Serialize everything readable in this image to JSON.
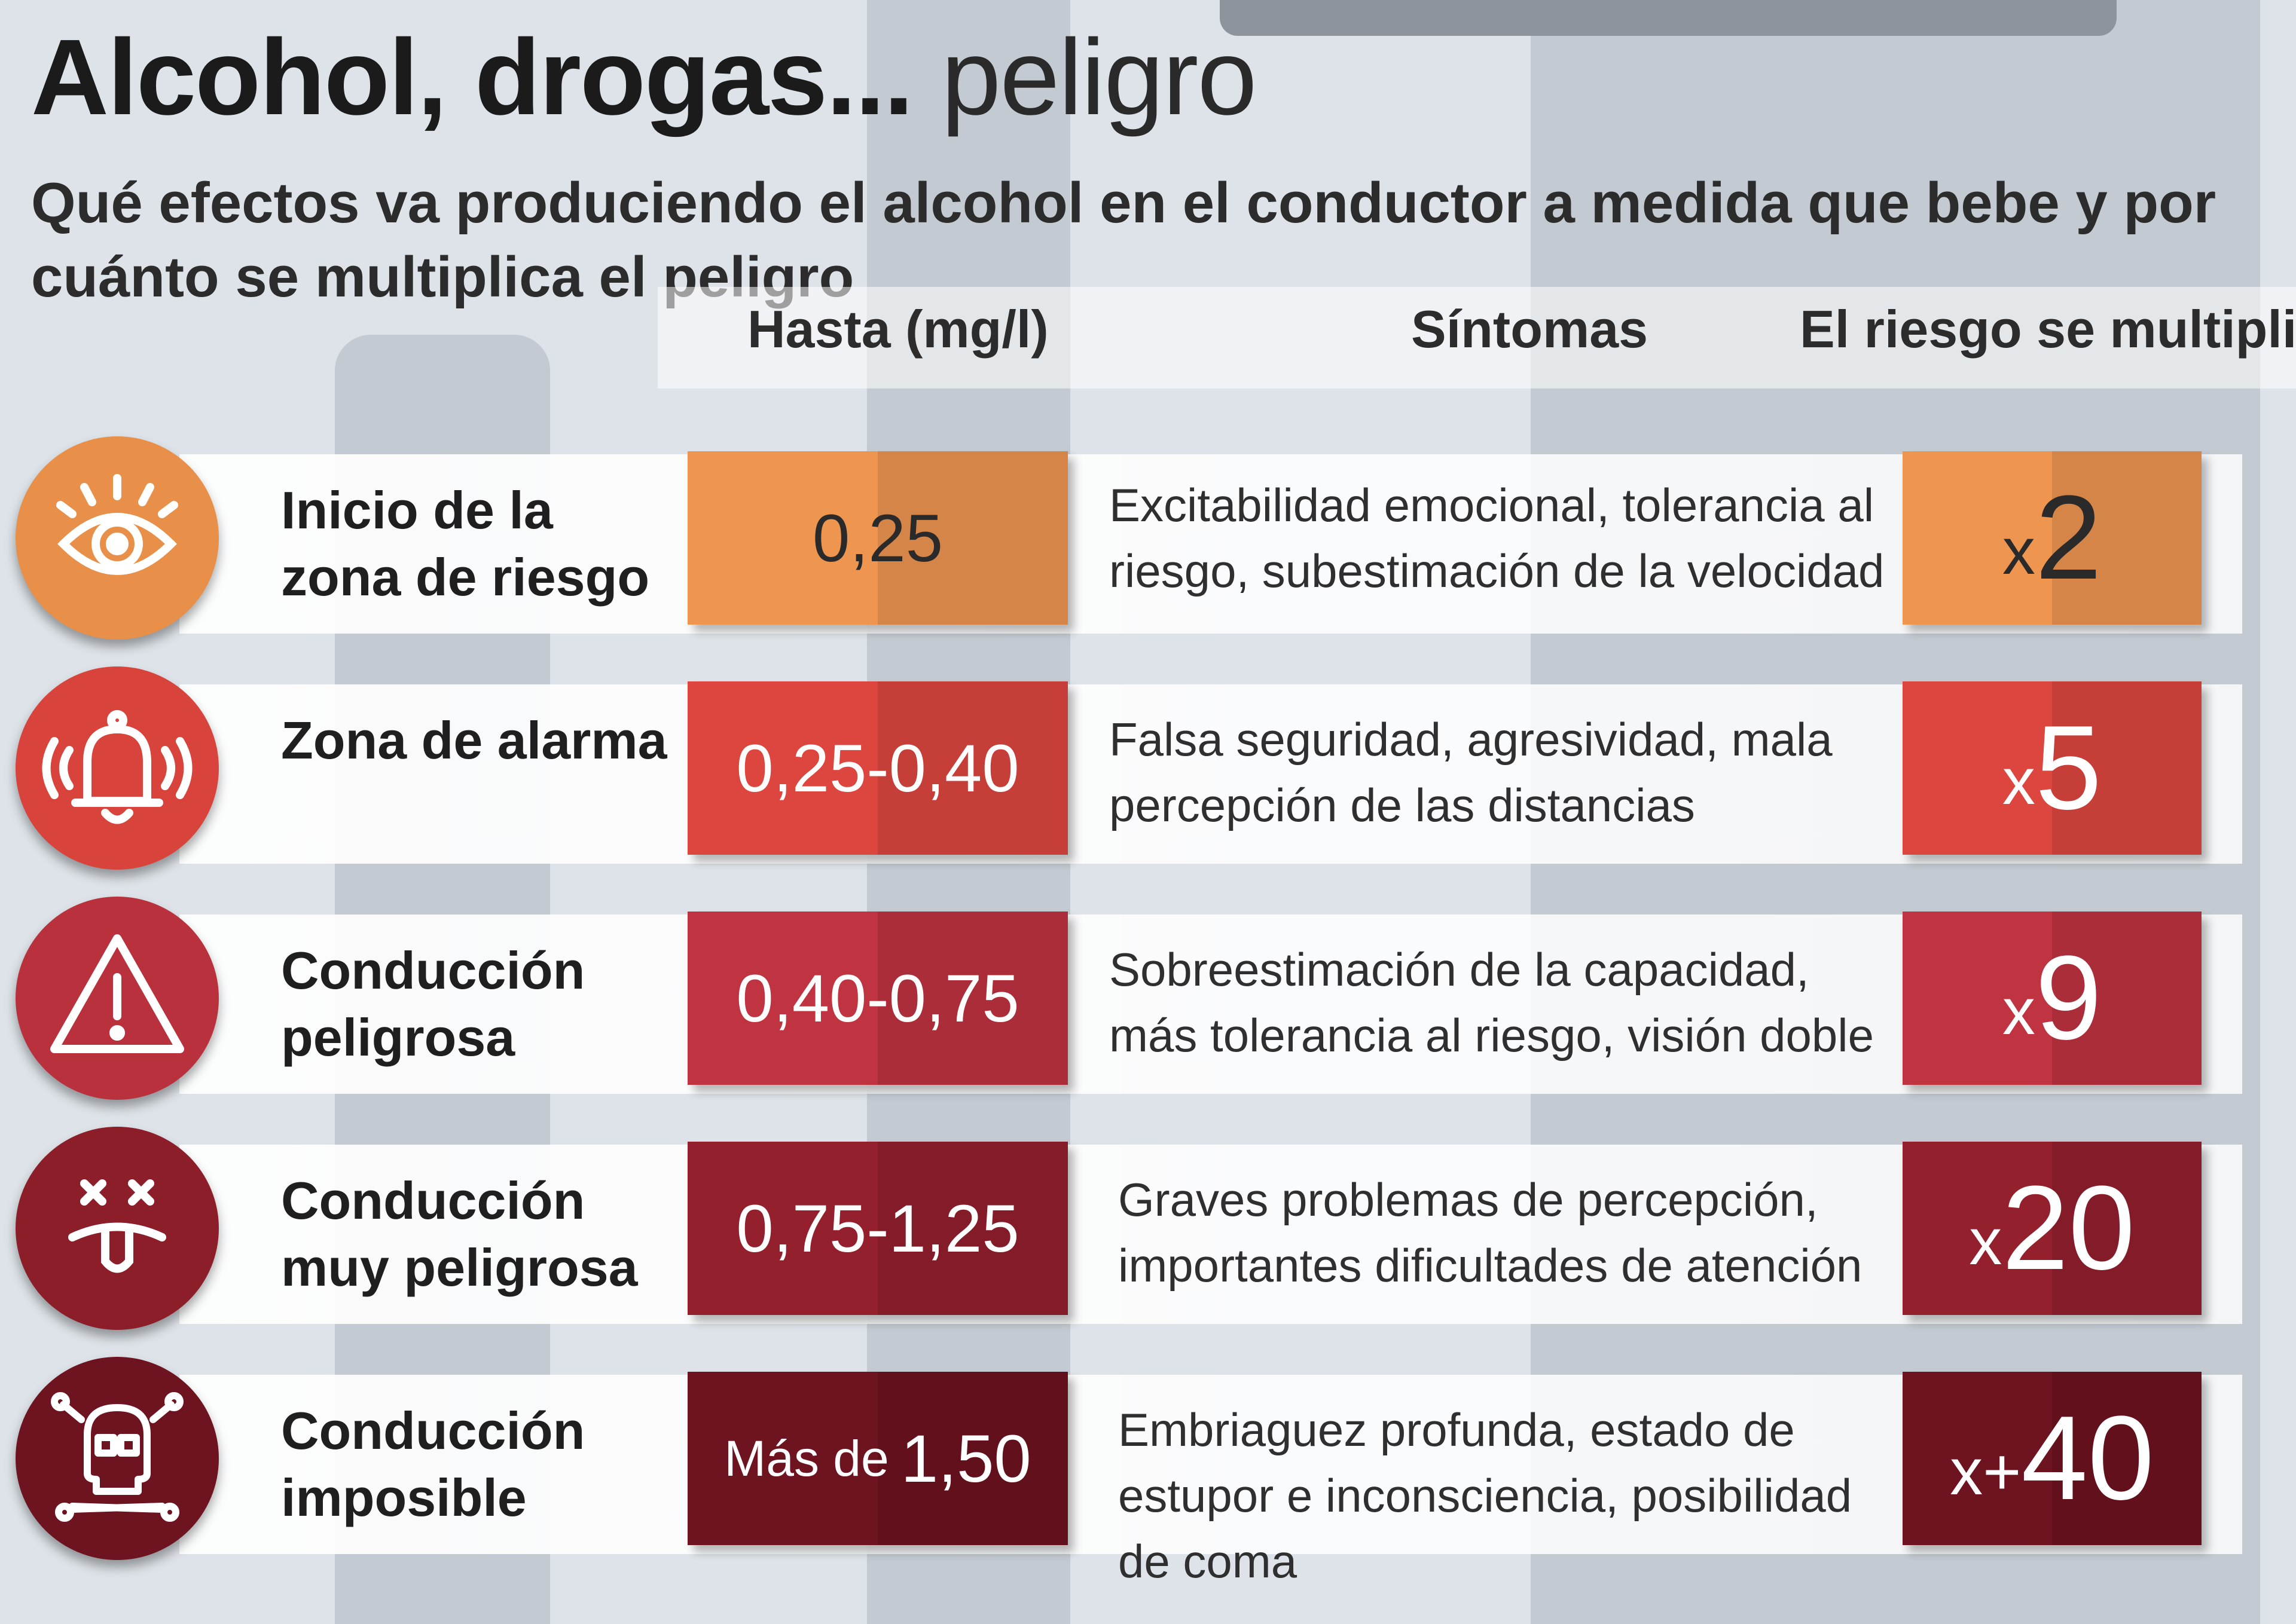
{
  "title": {
    "bold": "Alcohol, drogas...",
    "light": "peligro"
  },
  "subtitle": "Qué efectos va produciendo el alcohol en el conductor a medida que bebe y por cuánto se multiplica el peligro",
  "columns": {
    "hasta": "Hasta (mg/l)",
    "sintomas": "Síntomas",
    "riesgo": "El riesgo se multiplica"
  },
  "colors": {
    "orange": "#e8904a",
    "red1": "#d8433c",
    "red2": "#b9313c",
    "red3": "#8c1e2a",
    "red4": "#6e1420"
  },
  "rows": [
    {
      "icon": "eye-icon",
      "label": "Inicio de la zona de riesgo",
      "value": "0,25",
      "value_prefix": "",
      "symptoms": "Excitabilidad emocional, tolerancia al riesgo, subestimación de la velocidad",
      "mult_x": "x",
      "mult_n": "2"
    },
    {
      "icon": "alarm-bell-icon",
      "label": "Zona de alarma",
      "value": "0,25-0,40",
      "value_prefix": "",
      "symptoms": "Falsa seguridad, agresividad,  mala percepción de las distancias",
      "mult_x": "x",
      "mult_n": "5"
    },
    {
      "icon": "warning-icon",
      "label": "Conducción peligrosa",
      "value": "0,40-0,75",
      "value_prefix": "",
      "symptoms": "Sobreestimación de la capacidad, más tolerancia al riesgo, visión doble",
      "mult_x": "x",
      "mult_n": "9"
    },
    {
      "icon": "dizzy-face-icon",
      "label": "Conducción muy peligrosa",
      "value": "0,75-1,25",
      "value_prefix": "",
      "symptoms": "Graves problemas de percepción, importantes dificultades de atención",
      "mult_x": "x",
      "mult_n": "20"
    },
    {
      "icon": "skull-crossbones-icon",
      "label": "Conducción imposible",
      "value": "1,50",
      "value_prefix": "Más de",
      "symptoms": "Embriaguez profunda, estado de estupor e inconsciencia, posibilidad de coma",
      "mult_x": "x+",
      "mult_n": "40"
    }
  ]
}
